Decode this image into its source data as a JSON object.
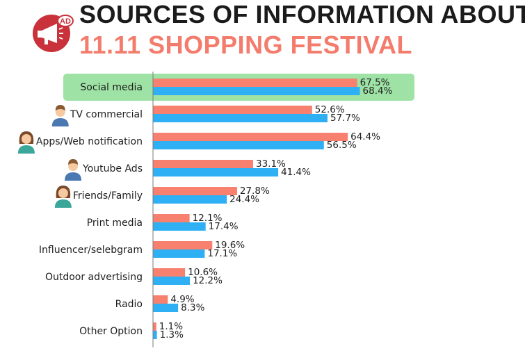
{
  "title_line1": "SOURCES OF INFORMATION ABOUT",
  "title_line2": "11.11 SHOPPING FESTIVAL",
  "logo_text": "AD",
  "colors": {
    "series1": "#f7806f",
    "series2": "#2fb0f4",
    "highlight": "#9ee2a5",
    "title_accent": "#f37c6d",
    "logo": "#c9323a"
  },
  "icons": [
    "megaphone-icon",
    "male-avatar-icon",
    "female-avatar-icon"
  ],
  "chart_data": {
    "type": "bar",
    "orientation": "horizontal",
    "categories": [
      "Social media",
      "TV commercial",
      "Apps/Web notification",
      "Youtube Ads",
      "Friends/Family",
      "Print media",
      "Influencer/selebgram",
      "Outdoor advertising",
      "Radio",
      "Other Option"
    ],
    "series": [
      {
        "values": [
          67.5,
          52.6,
          64.4,
          33.1,
          27.8,
          12.1,
          19.6,
          10.6,
          4.9,
          1.1
        ],
        "labels": [
          "67.5%",
          "52.6%",
          "64.4%",
          "33.1%",
          "27.8%",
          "12.1%",
          "19.6%",
          "10.6%",
          "4.9%",
          "1.1%"
        ]
      },
      {
        "values": [
          68.4,
          57.7,
          56.5,
          41.4,
          24.4,
          17.4,
          17.1,
          12.2,
          8.3,
          1.3
        ],
        "labels": [
          "68.4%",
          "57.7%",
          "56.5%",
          "41.4%",
          "24.4%",
          "17.4%",
          "17.1%",
          "12.2%",
          "8.3%",
          "1.3%"
        ]
      }
    ],
    "highlighted_category": "Social media",
    "category_icons": {
      "TV commercial": "male-avatar-icon",
      "Apps/Web notification": "female-avatar-icon",
      "Youtube Ads": "male-avatar-icon",
      "Friends/Family": "female-avatar-icon"
    },
    "xlim": [
      0,
      100
    ],
    "grid": false,
    "legend": "none",
    "xlabel": "",
    "ylabel": ""
  }
}
